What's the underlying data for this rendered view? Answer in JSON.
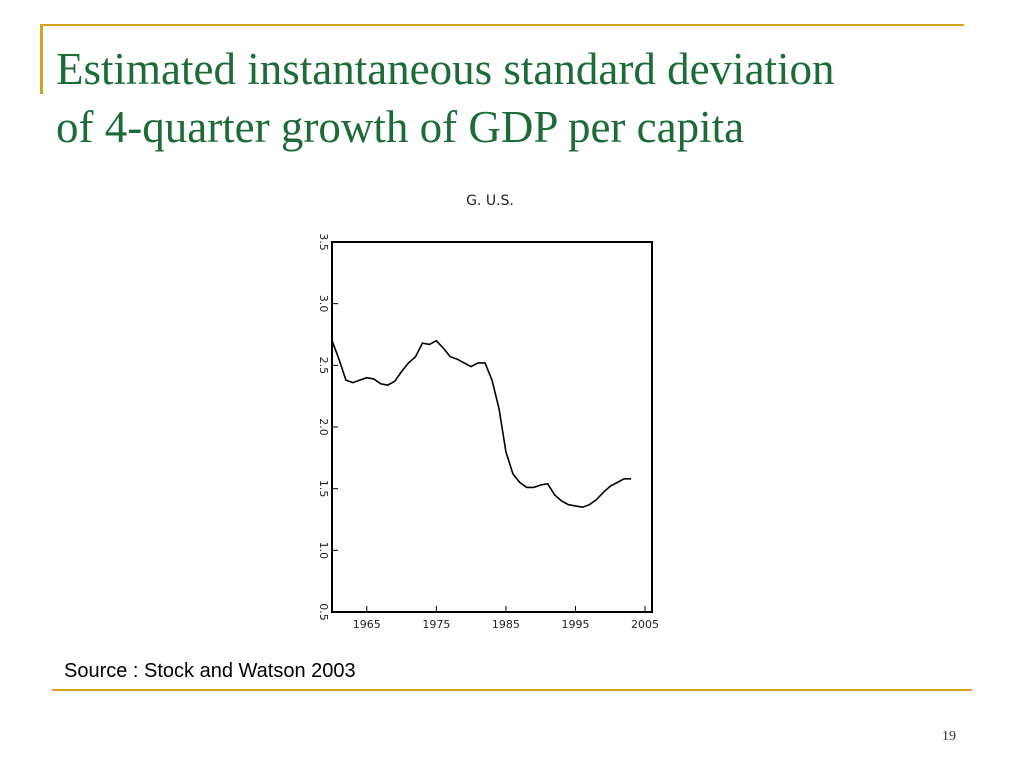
{
  "slide": {
    "title_line1": "Estimated instantaneous standard deviation",
    "title_line2": "of 4-quarter growth of GDP per capita",
    "source": "Source : Stock and Watson 2003",
    "page_number": "19"
  },
  "colors": {
    "title": "#1e6b3a",
    "accent_rule": "#d4a21e",
    "line": "#000000"
  },
  "chart_data": {
    "type": "line",
    "title": "G. U.S.",
    "xlabel": "",
    "ylabel": "",
    "xlim": [
      1960,
      2006
    ],
    "ylim": [
      0.5,
      3.5
    ],
    "x_ticks": [
      "1965",
      "1975",
      "1985",
      "1995",
      "2005"
    ],
    "y_ticks": [
      "0.5",
      "1.0",
      "1.5",
      "2.0",
      "2.5",
      "3.0",
      "3.5"
    ],
    "grid": false,
    "series": [
      {
        "x": [
          1960.0,
          1961.0,
          1962.0,
          1963.0,
          1964.0,
          1965.0,
          1966.0,
          1967.0,
          1968.0,
          1969.0,
          1970.0,
          1971.0,
          1972.0,
          1973.0,
          1974.0,
          1975.0,
          1976.0,
          1977.0,
          1978.0,
          1979.0,
          1980.0,
          1981.0,
          1982.0,
          1983.0,
          1984.0,
          1985.0,
          1986.0,
          1987.0,
          1988.0,
          1989.0,
          1990.0,
          1991.0,
          1992.0,
          1993.0,
          1994.0,
          1995.0,
          1996.0,
          1997.0,
          1998.0,
          1999.0,
          2000.0,
          2001.0,
          2002.0,
          2003.0
        ],
        "y": [
          2.7,
          2.55,
          2.38,
          2.36,
          2.38,
          2.4,
          2.39,
          2.35,
          2.34,
          2.37,
          2.45,
          2.52,
          2.57,
          2.68,
          2.67,
          2.7,
          2.64,
          2.57,
          2.55,
          2.52,
          2.49,
          2.52,
          2.52,
          2.38,
          2.15,
          1.8,
          1.62,
          1.55,
          1.51,
          1.51,
          1.53,
          1.54,
          1.45,
          1.4,
          1.37,
          1.36,
          1.35,
          1.37,
          1.41,
          1.47,
          1.52,
          1.55,
          1.58,
          1.58
        ]
      }
    ]
  }
}
